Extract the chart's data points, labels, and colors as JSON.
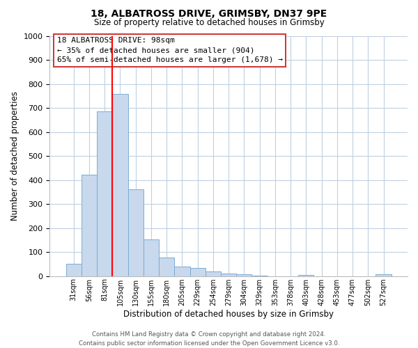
{
  "title": "18, ALBATROSS DRIVE, GRIMSBY, DN37 9PE",
  "subtitle": "Size of property relative to detached houses in Grimsby",
  "xlabel": "Distribution of detached houses by size in Grimsby",
  "ylabel": "Number of detached properties",
  "bar_color": "#c8d8ed",
  "bar_edge_color": "#7aadd4",
  "bin_labels": [
    "31sqm",
    "56sqm",
    "81sqm",
    "105sqm",
    "130sqm",
    "155sqm",
    "180sqm",
    "205sqm",
    "229sqm",
    "254sqm",
    "279sqm",
    "304sqm",
    "329sqm",
    "353sqm",
    "378sqm",
    "403sqm",
    "428sqm",
    "453sqm",
    "477sqm",
    "502sqm",
    "527sqm"
  ],
  "bar_heights": [
    52,
    423,
    686,
    757,
    362,
    152,
    76,
    40,
    33,
    18,
    12,
    8,
    2,
    0,
    0,
    5,
    0,
    0,
    0,
    0,
    7
  ],
  "ylim": [
    0,
    1000
  ],
  "yticks": [
    0,
    100,
    200,
    300,
    400,
    500,
    600,
    700,
    800,
    900,
    1000
  ],
  "red_line_bin_index": 3,
  "annotation_text_line1": "18 ALBATROSS DRIVE: 98sqm",
  "annotation_text_line2": "← 35% of detached houses are smaller (904)",
  "annotation_text_line3": "65% of semi-detached houses are larger (1,678) →",
  "footer_line1": "Contains HM Land Registry data © Crown copyright and database right 2024.",
  "footer_line2": "Contains public sector information licensed under the Open Government Licence v3.0.",
  "background_color": "#ffffff",
  "grid_color": "#c0d0e0"
}
